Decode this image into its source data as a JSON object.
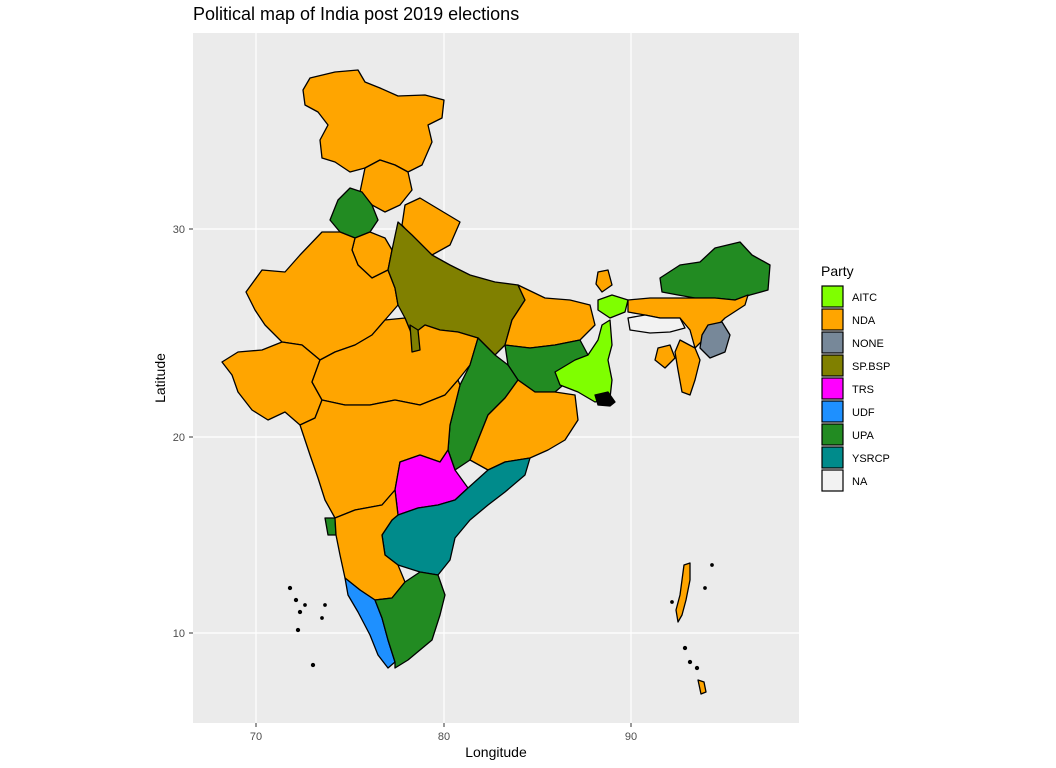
{
  "map": {
    "title": "Political map of India post 2019 elections",
    "xlabel": "Longitude",
    "ylabel": "Latitude",
    "x_ticks": [
      "70",
      "80",
      "90"
    ],
    "y_ticks": [
      "30",
      "20",
      "10"
    ],
    "panel_color": "#ebebeb",
    "grid_color": "#ffffff"
  },
  "legend": {
    "title": "Party",
    "items": [
      {
        "label": "AITC",
        "color": "#7fff00"
      },
      {
        "label": "NDA",
        "color": "#ffa500"
      },
      {
        "label": "NONE",
        "color": "#778899"
      },
      {
        "label": "SP.BSP",
        "color": "#808000"
      },
      {
        "label": "TRS",
        "color": "#ff00ff"
      },
      {
        "label": "UDF",
        "color": "#1e90ff"
      },
      {
        "label": "UPA",
        "color": "#228b22"
      },
      {
        "label": "YSRCP",
        "color": "#008b8b"
      },
      {
        "label": "NA",
        "color": "#f2f2f2"
      }
    ]
  }
}
